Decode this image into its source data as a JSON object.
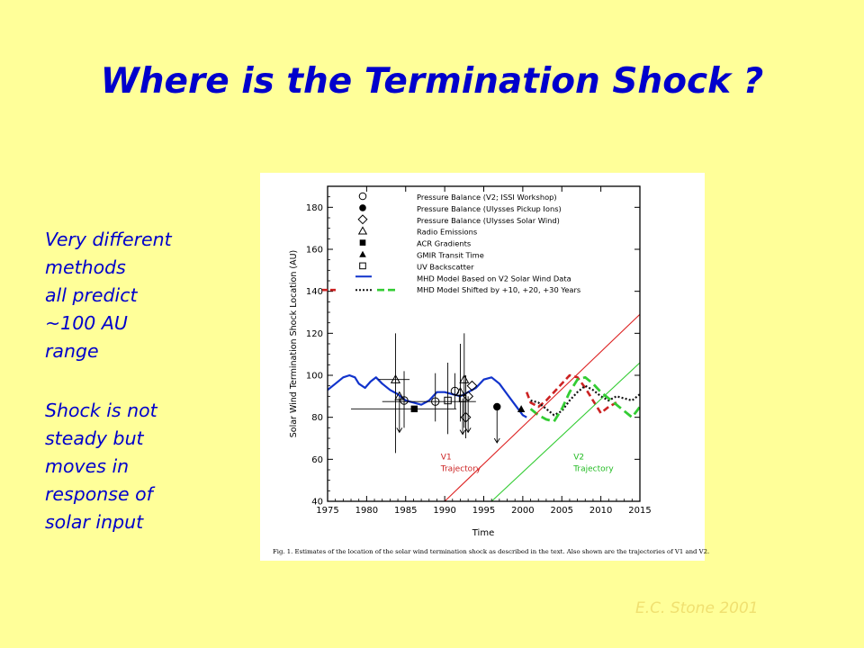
{
  "slide": {
    "title": "Where is the Termination Shock ?",
    "notes": [
      [
        "Very different",
        "methods",
        "all predict",
        "~100 AU",
        "range"
      ],
      [
        "Shock is not",
        "steady but",
        "moves in",
        "response of",
        "solar input"
      ]
    ],
    "credit": "E.C. Stone 2001",
    "colors": {
      "background": "#FFFF99",
      "text": "#0000CC",
      "credit": "#F0E070"
    }
  },
  "chart_data": {
    "type": "line",
    "xlabel": "Time",
    "ylabel": "Solar Wind Termination Shock Location (AU)",
    "xlim": [
      1975,
      2015
    ],
    "ylim": [
      40,
      190
    ],
    "x_ticks": [
      "1975",
      "1980",
      "1985",
      "1990",
      "1995",
      "2000",
      "2005",
      "2010",
      "2015"
    ],
    "y_ticks": [
      "40",
      "60",
      "80",
      "100",
      "120",
      "140",
      "160",
      "180"
    ],
    "caption": "Fig. 1. Estimates of the location of the solar wind termination shock as described in the text. Also shown are the trajectories of V1 and V2.",
    "legend": [
      {
        "marker": "open-circle",
        "label": "Pressure Balance (V2; ISSI Workshop)"
      },
      {
        "marker": "filled-circle",
        "label": "Pressure Balance (Ulysses Pickup Ions)"
      },
      {
        "marker": "open-diamond",
        "label": "Pressure Balance (Ulysses Solar Wind)"
      },
      {
        "marker": "open-triangle",
        "label": "Radio Emissions"
      },
      {
        "marker": "filled-square",
        "label": "ACR Gradients"
      },
      {
        "marker": "filled-triangle",
        "label": "GMIR Transit Time"
      },
      {
        "marker": "open-square",
        "label": "UV Backscatter"
      },
      {
        "marker": "blue-line",
        "label": "MHD Model Based on V2 Solar Wind Data"
      },
      {
        "marker": "shifted-lines",
        "label": "MHD Model Shifted by +10, +20, +30 Years"
      }
    ],
    "trajectory_labels": [
      {
        "name": "v1",
        "lines": [
          "V1",
          "Trajectory"
        ],
        "color": "#cc2222",
        "x": 1989.5,
        "y": 60
      },
      {
        "name": "v2",
        "lines": [
          "V2",
          "Trajectory"
        ],
        "color": "#22bb22",
        "x": 2006.5,
        "y": 60
      }
    ],
    "series": [
      {
        "name": "MHD Model Based on V2 Solar Wind Data",
        "style": "solid",
        "color": "#1133cc",
        "x": [
          1975,
          1976,
          1977,
          1977.8,
          1978.5,
          1979,
          1979.8,
          1980.5,
          1981.2,
          1982,
          1983,
          1984,
          1985,
          1986,
          1987,
          1988,
          1989,
          1990,
          1991,
          1992,
          1993,
          1994,
          1995,
          1996,
          1997,
          1998,
          1999,
          2000,
          2000.5
        ],
        "y": [
          93,
          96,
          99,
          100,
          99,
          96,
          94,
          97,
          99,
          96,
          93,
          91,
          88,
          87,
          86,
          88,
          92,
          92,
          91,
          90,
          92,
          94,
          98,
          99,
          96,
          91,
          86,
          81,
          80
        ]
      },
      {
        "name": "MHD +10 years",
        "style": "dashed",
        "color": "#cc2222",
        "x": [
          2000.5,
          2001,
          2002,
          2003,
          2004,
          2005,
          2006,
          2007,
          2008,
          2009,
          2010,
          2011,
          2012
        ],
        "y": [
          92,
          87,
          85,
          88,
          92,
          96,
          100,
          99,
          94,
          88,
          82,
          85,
          87
        ]
      },
      {
        "name": "MHD +20 years",
        "style": "dotted",
        "color": "#111111",
        "x": [
          2001,
          2002,
          2003,
          2004,
          2005,
          2006,
          2007,
          2008,
          2009,
          2010,
          2011,
          2012,
          2013,
          2014,
          2015
        ],
        "y": [
          88,
          87,
          84,
          81,
          83,
          88,
          92,
          95,
          93,
          90,
          88,
          90,
          89,
          88,
          91
        ]
      },
      {
        "name": "MHD +30 years",
        "style": "long-dashed",
        "color": "#33cc33",
        "x": [
          2001,
          2002,
          2003,
          2004,
          2005,
          2006,
          2007,
          2008,
          2009,
          2010,
          2011,
          2012,
          2013,
          2014,
          2015
        ],
        "y": [
          84,
          81,
          79,
          78,
          84,
          92,
          98,
          99,
          96,
          92,
          89,
          86,
          83,
          80,
          85
        ]
      },
      {
        "name": "V1 Trajectory",
        "style": "solid-thin",
        "color": "#dd2222",
        "x": [
          1990,
          2015
        ],
        "y": [
          40,
          129
        ]
      },
      {
        "name": "V2 Trajectory",
        "style": "solid-thin",
        "color": "#33cc33",
        "x": [
          1996,
          2015
        ],
        "y": [
          40,
          106
        ]
      }
    ],
    "points": [
      {
        "marker": "open-triangle",
        "x": 1983.7,
        "y": 98,
        "yerr": [
          63,
          120
        ],
        "xerr": [
          1981.5,
          1985.5
        ]
      },
      {
        "marker": "open-triangle",
        "x": 1984.2,
        "y": 90,
        "arrow_down": true
      },
      {
        "marker": "open-circle",
        "x": 1984.8,
        "y": 88,
        "yerr": [
          75,
          102
        ]
      },
      {
        "marker": "filled-square",
        "x": 1986.1,
        "y": 84,
        "xerr": [
          1978,
          1991.5
        ]
      },
      {
        "marker": "open-circle",
        "x": 1988.8,
        "y": 87.5,
        "xerr": [
          1982,
          1994
        ],
        "yerr": [
          78,
          101
        ]
      },
      {
        "marker": "open-square",
        "x": 1990.4,
        "y": 88,
        "yerr": [
          72,
          106
        ]
      },
      {
        "marker": "open-circle",
        "x": 1991.3,
        "y": 92.5,
        "yerr": [
          84,
          101
        ]
      },
      {
        "marker": "open-triangle",
        "x": 1992.0,
        "y": 92,
        "yerr": [
          78,
          115
        ]
      },
      {
        "marker": "open-square",
        "x": 1992.3,
        "y": 89,
        "arrow_down": true
      },
      {
        "marker": "open-triangle",
        "x": 1992.5,
        "y": 98,
        "yerr": [
          75,
          120
        ]
      },
      {
        "marker": "open-diamond",
        "x": 1992.7,
        "y": 80,
        "yerr": [
          70,
          100
        ]
      },
      {
        "marker": "open-diamond",
        "x": 1993.0,
        "y": 90,
        "arrow_down": true
      },
      {
        "marker": "open-diamond",
        "x": 1993.5,
        "y": 95
      },
      {
        "marker": "filled-circle",
        "x": 1996.7,
        "y": 85,
        "arrow_down": true
      },
      {
        "marker": "filled-triangle",
        "x": 1999.8,
        "y": 84
      }
    ]
  }
}
